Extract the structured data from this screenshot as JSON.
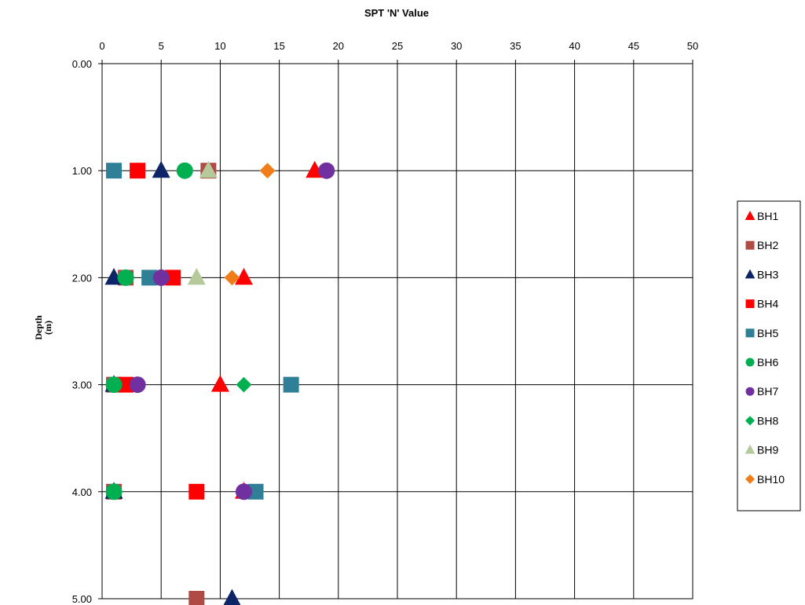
{
  "chart_data": {
    "type": "scatter",
    "title": "SPT 'N' Value",
    "ylabel_line1": "Depth",
    "ylabel_line2": "(m)",
    "xlim": [
      0,
      50
    ],
    "ylim": [
      0,
      5
    ],
    "y_inverted": true,
    "x_ticks": [
      "0",
      "5",
      "10",
      "15",
      "20",
      "25",
      "30",
      "35",
      "40",
      "45",
      "50"
    ],
    "y_ticks": [
      "0.00",
      "1.00",
      "2.00",
      "3.00",
      "4.00",
      "5.00"
    ],
    "grid": true,
    "legend_position": "right",
    "series": [
      {
        "name": "BH1",
        "marker": "triangle",
        "color": "#ff0000",
        "points": [
          {
            "x": 18,
            "y": 1
          },
          {
            "x": 12,
            "y": 2
          },
          {
            "x": 10,
            "y": 3
          },
          {
            "x": 12,
            "y": 4
          }
        ]
      },
      {
        "name": "BH2",
        "marker": "square",
        "color": "#b04a45",
        "points": [
          {
            "x": 9,
            "y": 1
          },
          {
            "x": 2,
            "y": 2
          },
          {
            "x": 1,
            "y": 3
          },
          {
            "x": 1,
            "y": 4
          },
          {
            "x": 8,
            "y": 5
          }
        ]
      },
      {
        "name": "BH3",
        "marker": "triangle",
        "color": "#0d2566",
        "points": [
          {
            "x": 5,
            "y": 1
          },
          {
            "x": 1,
            "y": 2
          },
          {
            "x": 1,
            "y": 3
          },
          {
            "x": 1,
            "y": 4
          },
          {
            "x": 11,
            "y": 5
          }
        ]
      },
      {
        "name": "BH4",
        "marker": "square",
        "color": "#ff0000",
        "points": [
          {
            "x": 3,
            "y": 1
          },
          {
            "x": 6,
            "y": 2
          },
          {
            "x": 2,
            "y": 3
          },
          {
            "x": 8,
            "y": 4
          }
        ]
      },
      {
        "name": "BH5",
        "marker": "square",
        "color": "#2f8097",
        "points": [
          {
            "x": 1,
            "y": 1
          },
          {
            "x": 4,
            "y": 2
          },
          {
            "x": 16,
            "y": 3
          },
          {
            "x": 13,
            "y": 4
          }
        ]
      },
      {
        "name": "BH6",
        "marker": "circle",
        "color": "#00b050",
        "points": [
          {
            "x": 7,
            "y": 1
          },
          {
            "x": 2,
            "y": 2
          },
          {
            "x": 1,
            "y": 3
          },
          {
            "x": 1,
            "y": 4
          }
        ]
      },
      {
        "name": "BH7",
        "marker": "circle",
        "color": "#7030a0",
        "points": [
          {
            "x": 19,
            "y": 1
          },
          {
            "x": 5,
            "y": 2
          },
          {
            "x": 3,
            "y": 3
          },
          {
            "x": 12,
            "y": 4
          }
        ]
      },
      {
        "name": "BH8",
        "marker": "diamond",
        "color": "#00b050",
        "points": [
          {
            "x": 12,
            "y": 3
          }
        ]
      },
      {
        "name": "BH9",
        "marker": "triangle",
        "color": "#b5c99a",
        "points": [
          {
            "x": 9,
            "y": 1
          },
          {
            "x": 8,
            "y": 2
          }
        ]
      },
      {
        "name": "BH10",
        "marker": "diamond",
        "color": "#f07d1a",
        "points": [
          {
            "x": 14,
            "y": 1
          },
          {
            "x": 11,
            "y": 2
          }
        ]
      }
    ]
  }
}
